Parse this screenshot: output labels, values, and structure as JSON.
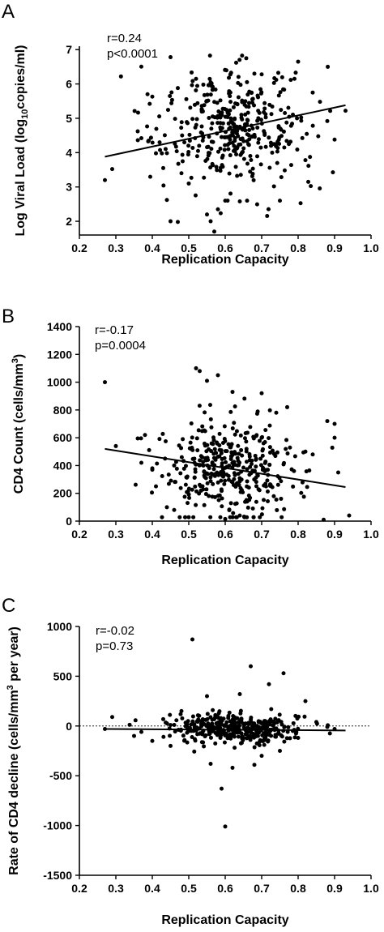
{
  "chart_data": [
    {
      "panel": "A",
      "type": "scatter",
      "xlabel": "Replication Capacity",
      "ylabel": "Log Viral Load (log10copies/ml)",
      "ylabel_parts": {
        "pre": "Log Viral Load (log",
        "sub": "10",
        "post": "copies/ml)"
      },
      "xlim": [
        0.2,
        1.0
      ],
      "ylim": [
        1.6,
        7.1
      ],
      "xticks": [
        "0.2",
        "0.3",
        "0.4",
        "0.5",
        "0.6",
        "0.7",
        "0.8",
        "0.9",
        "1.0"
      ],
      "yticks": [
        "2",
        "3",
        "4",
        "5",
        "6",
        "7"
      ],
      "annotation": [
        "r=0.24",
        "p<0.0001"
      ],
      "fit_line": [
        [
          0.27,
          3.88
        ],
        [
          0.93,
          5.38
        ]
      ],
      "reference_line": null,
      "points_summary": {
        "n": 380,
        "x_center": 0.62,
        "x_spread": 0.1,
        "y_center": 4.7,
        "y_spread": 0.85
      },
      "points": [
        [
          0.27,
          3.2
        ],
        [
          0.29,
          3.52
        ],
        [
          0.36,
          4.62
        ],
        [
          0.37,
          4.42
        ],
        [
          0.4,
          5.63
        ],
        [
          0.41,
          3.98
        ],
        [
          0.44,
          2.62
        ],
        [
          0.45,
          2.0
        ],
        [
          0.47,
          1.98
        ],
        [
          0.45,
          6.78
        ],
        [
          0.55,
          2.2
        ],
        [
          0.57,
          1.7
        ],
        [
          0.56,
          2.0
        ],
        [
          0.58,
          2.35
        ],
        [
          0.52,
          6.15
        ],
        [
          0.63,
          6.62
        ],
        [
          0.8,
          6.65
        ],
        [
          0.9,
          4.38
        ],
        [
          0.93,
          5.22
        ],
        [
          0.88,
          4.92
        ],
        [
          0.82,
          3.78
        ],
        [
          0.75,
          2.6
        ],
        [
          0.66,
          2.6
        ],
        [
          0.64,
          2.58
        ],
        [
          0.6,
          2.6
        ],
        [
          0.5,
          3.1
        ],
        [
          0.48,
          3.4
        ],
        [
          0.43,
          3.55
        ],
        [
          0.42,
          4.3
        ],
        [
          0.86,
          5.48
        ],
        [
          0.84,
          5.75
        ],
        [
          0.79,
          6.15
        ],
        [
          0.74,
          6.12
        ],
        [
          0.7,
          6.28
        ],
        [
          0.68,
          6.3
        ],
        [
          0.61,
          6.18
        ],
        [
          0.56,
          6.05
        ],
        [
          0.54,
          5.98
        ],
        [
          0.47,
          5.88
        ]
      ],
      "scatter_seed": 17
    },
    {
      "panel": "B",
      "type": "scatter",
      "xlabel": "Replication Capacity",
      "ylabel": "CD4 Count (cells/mm3)",
      "ylabel_parts": {
        "pre": "CD4 Count (cells/mm",
        "sup": "3",
        "post": ")"
      },
      "xlim": [
        0.2,
        1.0
      ],
      "ylim": [
        0,
        1400
      ],
      "xticks": [
        "0.2",
        "0.3",
        "0.4",
        "0.5",
        "0.6",
        "0.7",
        "0.8",
        "0.9",
        "1.0"
      ],
      "yticks": [
        "0",
        "200",
        "400",
        "600",
        "800",
        "1000",
        "1200",
        "1400"
      ],
      "annotation": [
        "r=-0.17",
        "p=0.0004"
      ],
      "fit_line": [
        [
          0.27,
          520
        ],
        [
          0.93,
          245
        ]
      ],
      "reference_line": null,
      "points_summary": {
        "n": 380,
        "x_center": 0.62,
        "x_spread": 0.1,
        "y_center": 360,
        "y_spread": 190
      },
      "points": [
        [
          0.27,
          1000
        ],
        [
          0.3,
          540
        ],
        [
          0.36,
          595
        ],
        [
          0.37,
          420
        ],
        [
          0.38,
          620
        ],
        [
          0.4,
          370
        ],
        [
          0.41,
          250
        ],
        [
          0.44,
          100
        ],
        [
          0.46,
          80
        ],
        [
          0.52,
          1100
        ],
        [
          0.53,
          1080
        ],
        [
          0.55,
          1010
        ],
        [
          0.58,
          1050
        ],
        [
          0.62,
          930
        ],
        [
          0.7,
          920
        ],
        [
          0.88,
          720
        ],
        [
          0.9,
          700
        ],
        [
          0.9,
          600
        ],
        [
          0.91,
          350
        ],
        [
          0.94,
          40
        ],
        [
          0.87,
          10
        ],
        [
          0.84,
          480
        ],
        [
          0.82,
          500
        ],
        [
          0.77,
          820
        ],
        [
          0.74,
          780
        ],
        [
          0.7,
          600
        ],
        [
          0.64,
          40
        ],
        [
          0.6,
          15
        ]
      ],
      "scatter_seed": 53
    },
    {
      "panel": "C",
      "type": "scatter",
      "xlabel": "Replication Capacity",
      "ylabel": "Rate of CD4 decline (cells/mm3 per year)",
      "ylabel_parts": {
        "pre": "Rate of CD4 decline (cells/mm",
        "sup": "3",
        "post": " per year)"
      },
      "xlim": [
        0.2,
        1.0
      ],
      "ylim": [
        -1500,
        1000
      ],
      "xticks": [
        "0.2",
        "0.3",
        "0.4",
        "0.5",
        "0.6",
        "0.7",
        "0.8",
        "0.9",
        "1.0"
      ],
      "yticks": [
        "-1500",
        "-1000",
        "-500",
        "0",
        "500",
        "1000"
      ],
      "annotation": [
        "r=-0.02",
        "p=0.73"
      ],
      "fit_line": [
        [
          0.27,
          -30
        ],
        [
          0.93,
          -45
        ]
      ],
      "reference_line": 0,
      "points_summary": {
        "n": 380,
        "x_center": 0.62,
        "x_spread": 0.09,
        "y_center": -30,
        "y_spread": 75
      },
      "points": [
        [
          0.29,
          90
        ],
        [
          0.27,
          -30
        ],
        [
          0.35,
          -100
        ],
        [
          0.37,
          -60
        ],
        [
          0.51,
          870
        ],
        [
          0.67,
          600
        ],
        [
          0.72,
          420
        ],
        [
          0.76,
          530
        ],
        [
          0.82,
          250
        ],
        [
          0.59,
          -630
        ],
        [
          0.6,
          -1010
        ],
        [
          0.56,
          -380
        ],
        [
          0.62,
          -420
        ],
        [
          0.68,
          -390
        ],
        [
          0.45,
          -200
        ],
        [
          0.48,
          150
        ],
        [
          0.55,
          300
        ],
        [
          0.64,
          320
        ],
        [
          0.7,
          -300
        ],
        [
          0.75,
          -250
        ],
        [
          0.8,
          -120
        ],
        [
          0.85,
          40
        ],
        [
          0.88,
          -10
        ],
        [
          0.9,
          -30
        ]
      ],
      "scatter_seed": 91
    }
  ]
}
